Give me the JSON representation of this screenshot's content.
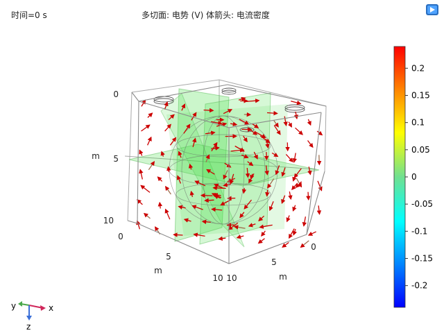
{
  "header": {
    "time_label": "时间=0 s",
    "title": "多切面: 电势 (V)  体箭头: 电流密度"
  },
  "icons": {
    "logo": "comsol-logo-icon"
  },
  "axes": {
    "left": {
      "ticks": [
        "0",
        "5",
        "10"
      ],
      "unit": "m"
    },
    "bottom_left": {
      "ticks": [
        "0",
        "5",
        "10"
      ],
      "unit": "m"
    },
    "bottom_right": {
      "ticks": [
        "0",
        "5",
        "10"
      ],
      "unit": "m"
    }
  },
  "colorbar": {
    "ticks": [
      "0.2",
      "0.15",
      "0.1",
      "0.05",
      "0",
      "-0.05",
      "-0.1",
      "-0.15",
      "-0.2"
    ],
    "range": [
      -0.24,
      0.24
    ],
    "colors": [
      "#ff0000",
      "#ff8800",
      "#ffff00",
      "#70e090",
      "#00ffff",
      "#0088ff",
      "#0000ff"
    ]
  },
  "triad": {
    "x": "x",
    "y": "y",
    "z": "z"
  },
  "colors": {
    "arrow": "#cc0000",
    "slice": "#66dd66",
    "box": "#999999"
  }
}
